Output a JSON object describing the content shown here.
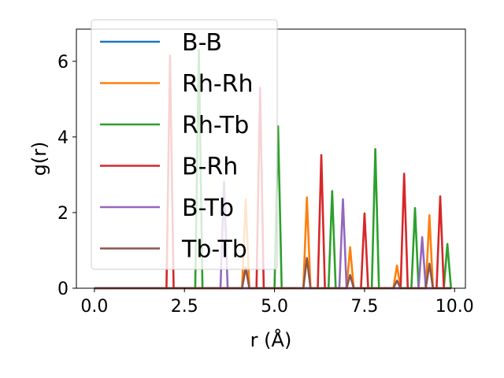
{
  "chart_data": {
    "type": "line",
    "xlabel": "r (Å)",
    "ylabel": "g(r)",
    "xlim": [
      -0.5,
      10.3
    ],
    "ylim": [
      0,
      6.85
    ],
    "x_ticks": [
      0.0,
      2.5,
      5.0,
      7.5,
      10.0
    ],
    "x_tick_labels": [
      "0.0",
      "2.5",
      "5.0",
      "7.5",
      "10.0"
    ],
    "y_ticks": [
      0,
      2,
      4,
      6
    ],
    "y_tick_labels": [
      "0",
      "2",
      "4",
      "6"
    ],
    "grid": false,
    "legend_position": "upper-left",
    "peak_half_width": 0.1,
    "series": [
      {
        "name": "B-B",
        "color": "#1f77b4",
        "peaks": []
      },
      {
        "name": "Rh-Rh",
        "color": "#ff7f0e",
        "peaks": [
          [
            4.2,
            2.35
          ],
          [
            5.9,
            2.4
          ],
          [
            7.1,
            1.08
          ],
          [
            8.4,
            0.6
          ],
          [
            9.3,
            1.93
          ]
        ]
      },
      {
        "name": "Rh-Tb",
        "color": "#2ca02c",
        "peaks": [
          [
            2.9,
            6.3
          ],
          [
            5.1,
            4.28
          ],
          [
            6.6,
            2.57
          ],
          [
            7.8,
            3.68
          ],
          [
            8.9,
            2.12
          ],
          [
            9.8,
            1.17
          ]
        ]
      },
      {
        "name": "B-Rh",
        "color": "#d62728",
        "peaks": [
          [
            2.1,
            6.15
          ],
          [
            4.6,
            5.3
          ],
          [
            6.3,
            3.52
          ],
          [
            7.5,
            1.98
          ],
          [
            8.6,
            3.03
          ],
          [
            9.6,
            2.43
          ]
        ]
      },
      {
        "name": "B-Tb",
        "color": "#9467bd",
        "peaks": [
          [
            3.6,
            2.82
          ],
          [
            6.9,
            2.35
          ],
          [
            9.1,
            1.35
          ]
        ]
      },
      {
        "name": "Tb-Tb",
        "color": "#8c564b",
        "peaks": [
          [
            4.2,
            0.55
          ],
          [
            5.9,
            0.8
          ],
          [
            7.1,
            0.35
          ],
          [
            8.4,
            0.2
          ],
          [
            9.3,
            0.65
          ]
        ]
      }
    ],
    "x_range": [
      0.0,
      9.9
    ]
  }
}
